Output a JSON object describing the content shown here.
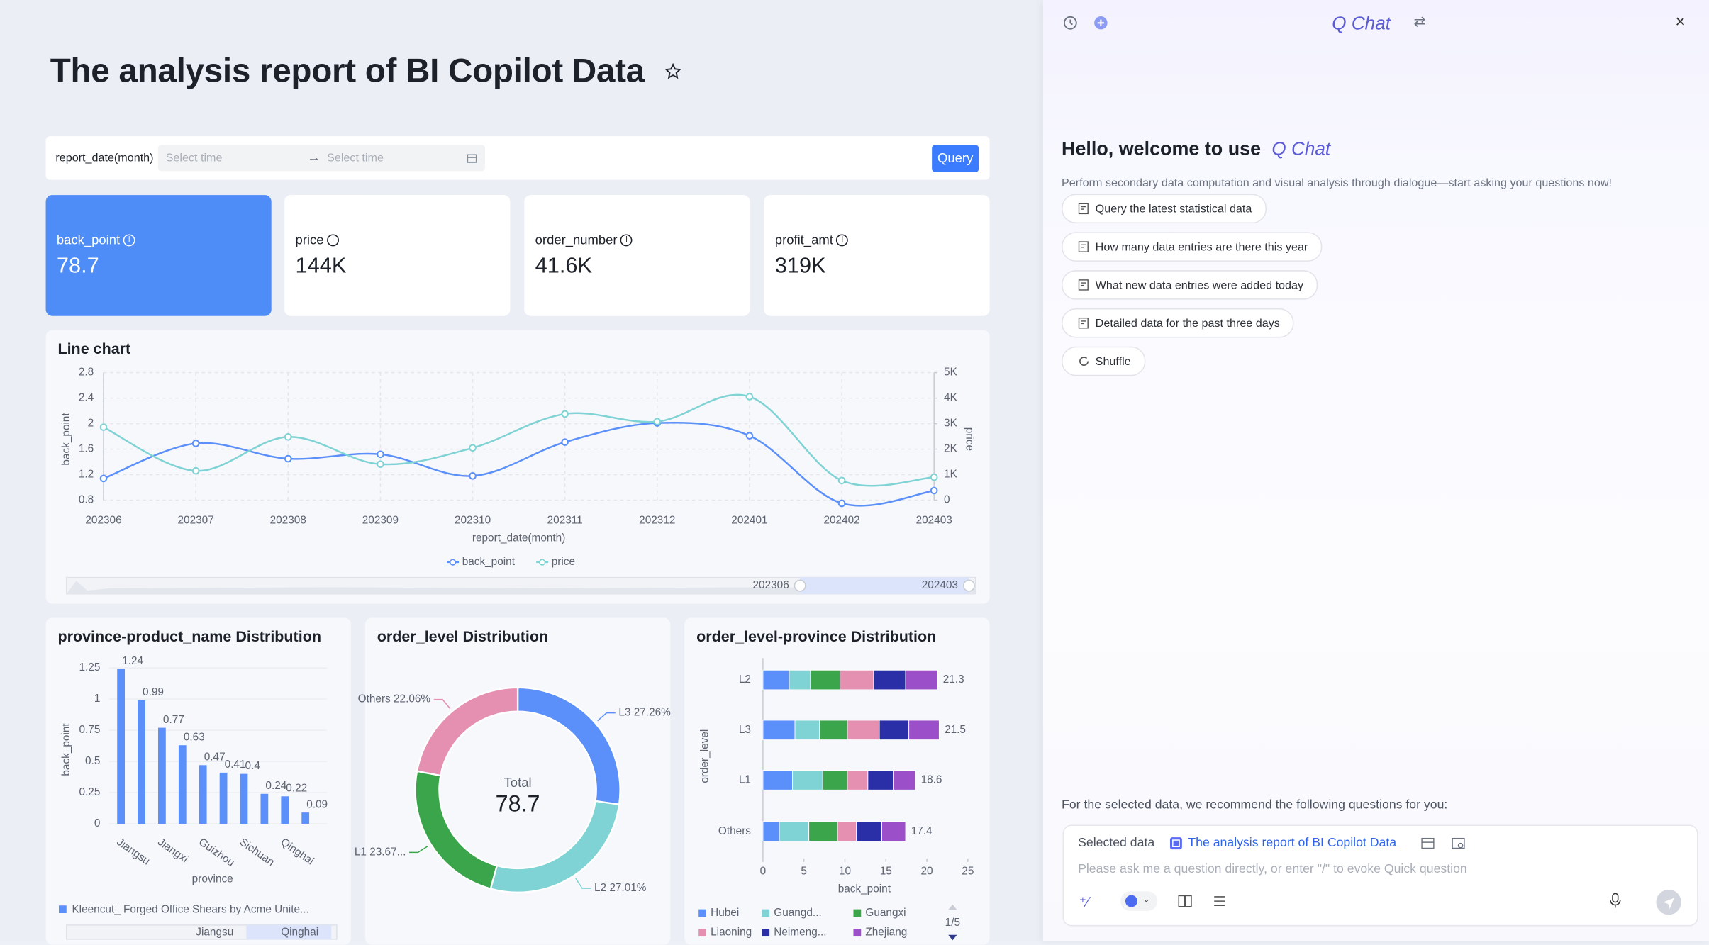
{
  "header": {
    "title": "The analysis report of BI Copilot Data"
  },
  "filter": {
    "label": "report_date(month)",
    "start_placeholder": "Select time",
    "end_placeholder": "Select time",
    "button": "Query"
  },
  "kpis": [
    {
      "name": "back_point",
      "value": "78.7"
    },
    {
      "name": "price",
      "value": "144K"
    },
    {
      "name": "order_number",
      "value": "41.6K"
    },
    {
      "name": "profit_amt",
      "value": "319K"
    }
  ],
  "chart_data": [
    {
      "type": "line",
      "title": "Line chart",
      "x_label": "report_date(month)",
      "y_label": "back_point",
      "y2_label": "price",
      "categories": [
        "202306",
        "202307",
        "202308",
        "202309",
        "202310",
        "202311",
        "202312",
        "202401",
        "202402",
        "202403"
      ],
      "series": [
        {
          "name": "back_point",
          "color": "#5b8ff9",
          "values": [
            1.14,
            1.69,
            1.45,
            1.52,
            1.18,
            1.71,
            2.01,
            1.81,
            0.75,
            0.95
          ]
        },
        {
          "name": "price",
          "color": "#7fd3d4",
          "axis": "y2",
          "values": [
            2860,
            1150,
            2480,
            1410,
            2050,
            3380,
            3080,
            4060,
            770,
            900
          ]
        }
      ],
      "ylim": [
        0.8,
        2.8
      ],
      "yticks": [
        0.8,
        1.2,
        1.6,
        2,
        2.4,
        2.8
      ],
      "y2lim": [
        0,
        5000
      ],
      "y2ticks": [
        0,
        {
          "value": 1000,
          "label": "1K"
        },
        {
          "value": 2000,
          "label": "2K"
        },
        {
          "value": 3000,
          "label": "3K"
        },
        {
          "value": 4000,
          "label": "4K"
        },
        {
          "value": 5000,
          "label": "5K"
        }
      ],
      "grid": true
    },
    {
      "type": "bar",
      "title": "province-product_name Distribution",
      "x_label": "province",
      "y_label": "back_point",
      "categories": [
        "Jiangsu",
        null,
        "Jiangxi",
        null,
        "Guizhou",
        null,
        "Sichuan",
        null,
        "Qinghai",
        null
      ],
      "series": [
        {
          "name": "Kleencut_ Forged Office Shears by Acme Unite...",
          "color": "#5b8ff9",
          "values": [
            1.24,
            0.99,
            0.77,
            0.63,
            0.47,
            0.41,
            0.4,
            0.24,
            0.22,
            0.09
          ]
        }
      ],
      "ylim": [
        0,
        1.25
      ],
      "yticks": [
        0,
        0.25,
        0.5,
        0.75,
        1,
        1.25
      ],
      "grid": true
    },
    {
      "type": "donut",
      "title": "order_level Distribution",
      "center_label": "Total",
      "center_value": 78.7,
      "values": [
        27.26,
        27.01,
        23.67,
        22.06
      ],
      "value_labels": [
        "L3 27.26%",
        "L2 27.01%",
        "L1 23.67...",
        "Others 22.06%"
      ],
      "colors": [
        "#5b8ff9",
        "#7fd3d4",
        "#3aa54a",
        "#e58fb1"
      ]
    },
    {
      "type": "stacked_hbar",
      "title": "order_level-province Distribution",
      "x_label": "back_point",
      "y_label": "order_level",
      "categories": [
        "L2",
        "L3",
        "L1",
        "Others"
      ],
      "series": [
        {
          "name": "Hubei",
          "color": "#5b8ff9",
          "values": [
            3.2,
            3.9,
            3.6,
            2.0
          ]
        },
        {
          "name": "Guangd...",
          "color": "#7fd3d4",
          "values": [
            2.6,
            3.0,
            3.7,
            3.6
          ]
        },
        {
          "name": "Guangxi",
          "color": "#3aa54a",
          "values": [
            3.6,
            3.4,
            3.0,
            3.5
          ]
        },
        {
          "name": "Liaoning",
          "color": "#e58fb1",
          "values": [
            4.1,
            3.9,
            2.5,
            2.3
          ]
        },
        {
          "name": "Neimeng...",
          "color": "#2a2fa8",
          "values": [
            3.9,
            3.6,
            3.1,
            3.1
          ]
        },
        {
          "name": "Zhejiang",
          "color": "#9b4fc9",
          "values": [
            3.9,
            3.7,
            2.7,
            2.9
          ]
        }
      ],
      "totals": [
        21.3,
        21.5,
        18.6,
        17.4
      ],
      "xlim": [
        0,
        25
      ],
      "xticks": [
        0,
        5,
        10,
        15,
        20,
        25
      ],
      "legend_page": "1/5"
    }
  ],
  "chat": {
    "title": "Q Chat",
    "welcome": "Hello, welcome to use",
    "brand": "Q Chat",
    "description": "Perform secondary data computation and visual analysis through dialogue—start asking your questions now!",
    "suggestions": [
      "Query the latest statistical data",
      "How many data entries are there this year",
      "What new data entries were added today",
      "Detailed data for the past three days"
    ],
    "shuffle": "Shuffle",
    "recommend": "For the selected data, we recommend the following questions for you:",
    "selected_label": "Selected data",
    "selected_value": "The analysis report of BI Copilot Data",
    "placeholder": "Please ask me a question directly, or enter \"/\" to evoke Quick question"
  }
}
